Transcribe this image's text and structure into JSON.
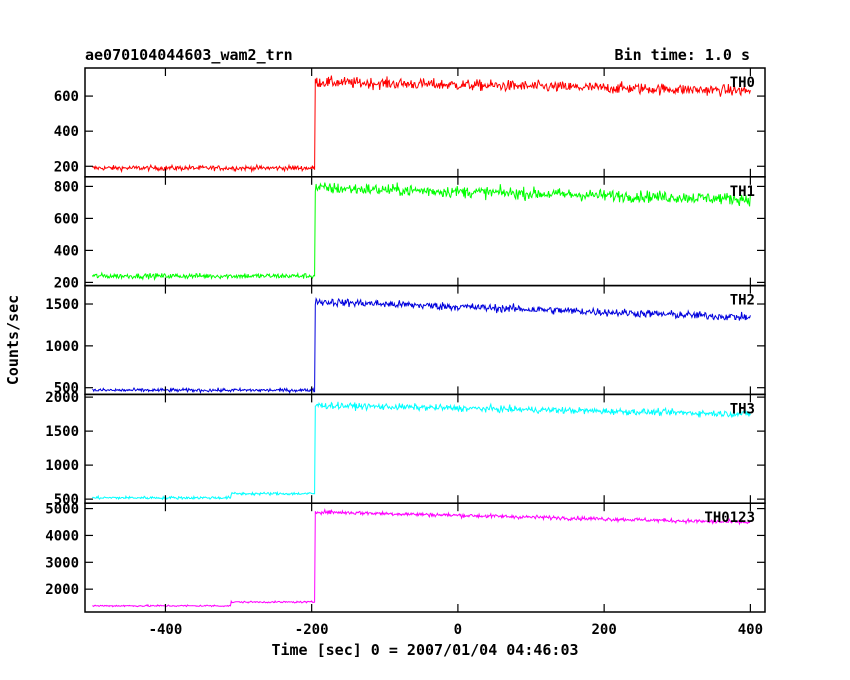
{
  "chart_data": {
    "type": "line",
    "title": "ae070104044603_wam2_trn",
    "subtitle": "Bin time: 1.0 s",
    "xlabel": "Time [sec] 0 = 2007/01/04 04:46:03",
    "ylabel": "Counts/sec",
    "xlim": [
      -510,
      420
    ],
    "x_ticks": [
      -400,
      -200,
      0,
      200,
      400
    ],
    "grid": false,
    "panels": [
      {
        "name": "TH0",
        "color": "#ff0000",
        "ylim": [
          140,
          760
        ],
        "y_ticks": [
          200,
          400,
          600
        ],
        "pre_level": 190,
        "post_start": 680,
        "post_end": 630,
        "noise": 30,
        "step_x": -195
      },
      {
        "name": "TH1",
        "color": "#00ff00",
        "ylim": [
          180,
          860
        ],
        "y_ticks": [
          200,
          400,
          600,
          800
        ],
        "pre_level": 240,
        "post_start": 790,
        "post_end": 720,
        "noise": 35,
        "step_x": -195
      },
      {
        "name": "TH2",
        "color": "#0000dd",
        "ylim": [
          420,
          1720
        ],
        "y_ticks": [
          500,
          1000,
          1500
        ],
        "pre_level": 470,
        "post_start": 1530,
        "post_end": 1340,
        "noise": 45,
        "step_x": -195
      },
      {
        "name": "TH3",
        "color": "#00ffff",
        "ylim": [
          440,
          2040
        ],
        "y_ticks": [
          500,
          1000,
          1500,
          2000
        ],
        "pre_level": 520,
        "pre_step_x": -310,
        "pre_level2": 580,
        "post_start": 1880,
        "post_end": 1750,
        "noise": 45,
        "step_x": -195
      },
      {
        "name": "TH0123",
        "color": "#ff00ff",
        "ylim": [
          1150,
          5200
        ],
        "y_ticks": [
          2000,
          3000,
          4000,
          5000
        ],
        "pre_level": 1380,
        "pre_step_x": -310,
        "pre_level2": 1520,
        "post_start": 4880,
        "post_end": 4480,
        "noise": 70,
        "step_x": -195
      }
    ]
  }
}
